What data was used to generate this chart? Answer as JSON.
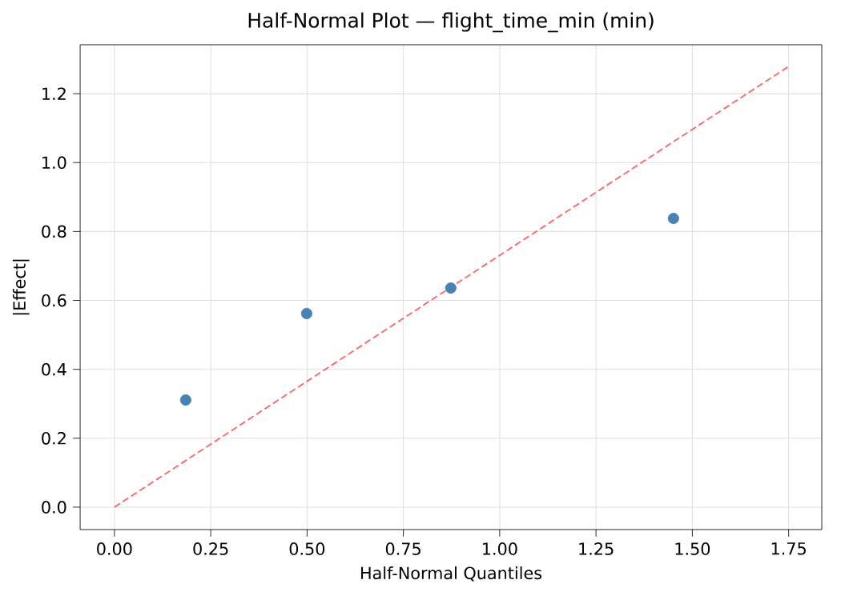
{
  "chart_data": {
    "type": "scatter",
    "title": "Half-Normal Plot — flight_time_min (min)",
    "xlabel": "Half-Normal Quantiles",
    "ylabel": "|Effect|",
    "xlim": [
      -0.089,
      1.836
    ],
    "ylim": [
      -0.065,
      1.342
    ],
    "xticks": [
      {
        "value": 0,
        "label": "0.00"
      },
      {
        "value": 0.25,
        "label": "0.25"
      },
      {
        "value": 0.5,
        "label": "0.50"
      },
      {
        "value": 0.75,
        "label": "0.75"
      },
      {
        "value": 1,
        "label": "1.00"
      },
      {
        "value": 1.25,
        "label": "1.25"
      },
      {
        "value": 1.5,
        "label": "1.50"
      },
      {
        "value": 1.75,
        "label": "1.75"
      }
    ],
    "yticks": [
      {
        "value": 0,
        "label": "0.0"
      },
      {
        "value": 0.2,
        "label": "0.2"
      },
      {
        "value": 0.4,
        "label": "0.4"
      },
      {
        "value": 0.6,
        "label": "0.6"
      },
      {
        "value": 0.8,
        "label": "0.8"
      },
      {
        "value": 1,
        "label": "1.0"
      },
      {
        "value": 1.2,
        "label": "1.2"
      }
    ],
    "grid": true,
    "series": [
      {
        "color": "#4682b4",
        "marker": "circle",
        "x": [
          0.185,
          0.499,
          0.873,
          1.451
        ],
        "values": [
          0.311,
          0.562,
          0.636,
          0.838
        ]
      },
      {
        "type": "line",
        "color": "#ff6666",
        "marker": "none",
        "line_style": "dashed",
        "x": [
          0,
          1.75
        ],
        "values": [
          0,
          1.279
        ]
      }
    ]
  }
}
